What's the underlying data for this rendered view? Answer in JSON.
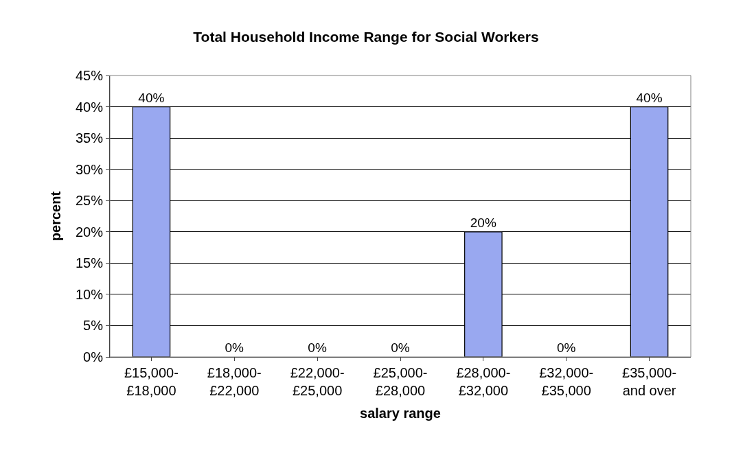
{
  "chart_data": {
    "type": "bar",
    "title": "Total Household Income Range for Social Workers",
    "xlabel": "salary range",
    "ylabel": "percent",
    "categories": [
      "£15,000-\n£18,000",
      "£18,000-\n£22,000",
      "£22,000-\n£25,000",
      "£25,000-\n£28,000",
      "£28,000-\n£32,000",
      "£32,000-\n£35,000",
      "£35,000-\nand over"
    ],
    "values": [
      40,
      0,
      0,
      0,
      20,
      0,
      40
    ],
    "value_labels": [
      "40%",
      "0%",
      "0%",
      "0%",
      "20%",
      "0%",
      "40%"
    ],
    "color": "#99a8f0",
    "ylim": [
      0,
      45
    ],
    "yticks": [
      {
        "value": 0,
        "label": "0%"
      },
      {
        "value": 5,
        "label": "5%"
      },
      {
        "value": 10,
        "label": "10%"
      },
      {
        "value": 15,
        "label": "15%"
      },
      {
        "value": 20,
        "label": "20%"
      },
      {
        "value": 25,
        "label": "25%"
      },
      {
        "value": 30,
        "label": "30%"
      },
      {
        "value": 35,
        "label": "35%"
      },
      {
        "value": 40,
        "label": "40%"
      },
      {
        "value": 45,
        "label": "45%"
      }
    ],
    "grid": "y",
    "legend": false
  }
}
